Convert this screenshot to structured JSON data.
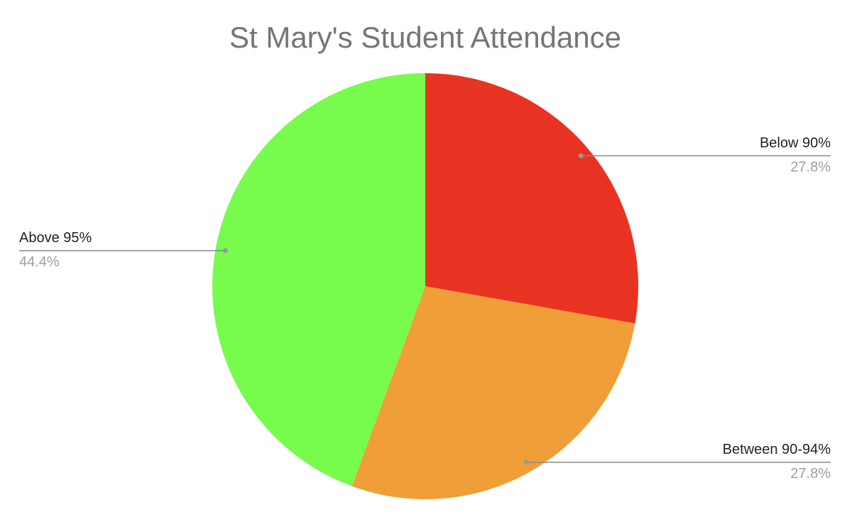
{
  "chart_data": {
    "type": "pie",
    "title": "St Mary's Student Attendance",
    "categories": [
      "Below 90%",
      "Between 90-94%",
      "Above 95%"
    ],
    "values": [
      27.8,
      27.8,
      44.4
    ],
    "value_labels": [
      "27.8%",
      "27.8%",
      "44.4%"
    ],
    "colors": [
      "#e83323",
      "#f09e38",
      "#77fc4d"
    ]
  }
}
